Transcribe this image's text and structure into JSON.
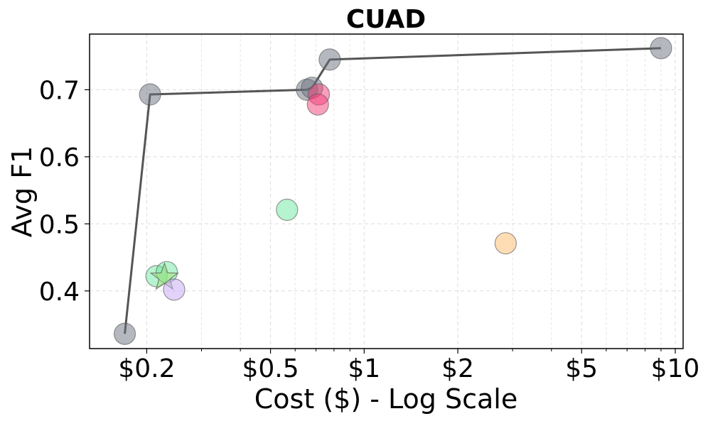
{
  "chart_data": {
    "type": "scatter",
    "title": "CUAD",
    "xlabel": "Cost ($) - Log Scale",
    "ylabel": "Avg F1",
    "xscale": "log",
    "xlim": [
      0.131,
      10.6
    ],
    "ylim": [
      0.314,
      0.783
    ],
    "grid": true,
    "x_ticks": [
      {
        "value": 0.2,
        "label": "$0.2"
      },
      {
        "value": 0.5,
        "label": "$0.5"
      },
      {
        "value": 1,
        "label": "$1"
      },
      {
        "value": 2,
        "label": "$2"
      },
      {
        "value": 5,
        "label": "$5"
      },
      {
        "value": 10,
        "label": "$10"
      }
    ],
    "y_ticks": [
      {
        "value": 0.4,
        "label": "0.4"
      },
      {
        "value": 0.5,
        "label": "0.5"
      },
      {
        "value": 0.6,
        "label": "0.6"
      },
      {
        "value": 0.7,
        "label": "0.7"
      }
    ],
    "frontier": {
      "name": "Pareto frontier",
      "color": "#555555",
      "points": [
        {
          "x": 0.17,
          "y": 0.336
        },
        {
          "x": 0.205,
          "y": 0.693
        },
        {
          "x": 0.655,
          "y": 0.7
        },
        {
          "x": 0.68,
          "y": 0.703
        },
        {
          "x": 0.775,
          "y": 0.745
        },
        {
          "x": 9.0,
          "y": 0.762
        }
      ]
    },
    "series": [
      {
        "name": "gray",
        "color": "#6b7280",
        "marker": "circle",
        "points": [
          {
            "x": 0.17,
            "y": 0.336
          },
          {
            "x": 0.205,
            "y": 0.693
          },
          {
            "x": 0.655,
            "y": 0.7
          },
          {
            "x": 0.68,
            "y": 0.703
          },
          {
            "x": 0.775,
            "y": 0.745
          },
          {
            "x": 9.0,
            "y": 0.762
          }
        ]
      },
      {
        "name": "pink",
        "color": "#f43f7a",
        "marker": "circle",
        "points": [
          {
            "x": 0.715,
            "y": 0.693
          },
          {
            "x": 0.71,
            "y": 0.678
          }
        ]
      },
      {
        "name": "green",
        "color": "#6ee7a0",
        "marker": "circle",
        "points": [
          {
            "x": 0.215,
            "y": 0.422
          },
          {
            "x": 0.232,
            "y": 0.428
          },
          {
            "x": 0.565,
            "y": 0.521
          }
        ]
      },
      {
        "name": "green-star",
        "color": "#a3e07a",
        "marker": "star",
        "points": [
          {
            "x": 0.228,
            "y": 0.42
          }
        ]
      },
      {
        "name": "purple",
        "color": "#c8a6f5",
        "marker": "circle",
        "points": [
          {
            "x": 0.245,
            "y": 0.402
          }
        ]
      },
      {
        "name": "orange",
        "color": "#fdbb6b",
        "marker": "circle",
        "points": [
          {
            "x": 2.85,
            "y": 0.471
          }
        ]
      }
    ]
  }
}
